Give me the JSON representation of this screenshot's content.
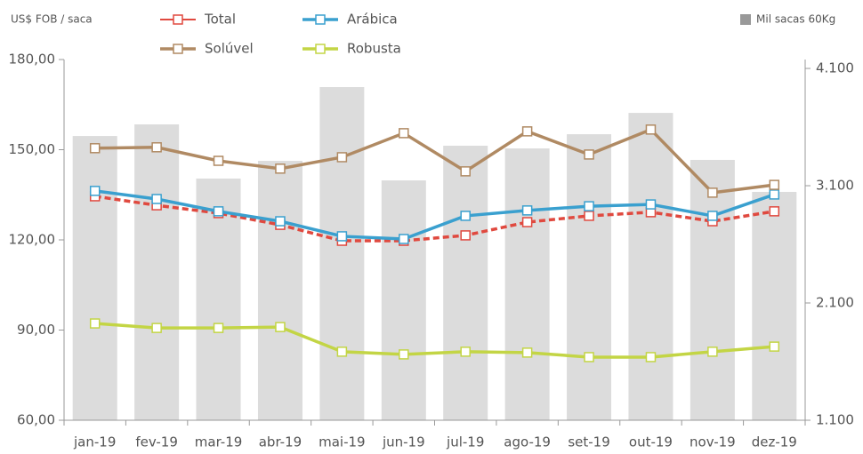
{
  "chart_data": {
    "type": "combo",
    "ylabel": "US$ FOB / saca",
    "categories": [
      "jan-19",
      "fev-19",
      "mar-19",
      "abr-19",
      "mai-19",
      "jun-19",
      "jul-19",
      "ago-19",
      "set-19",
      "out-19",
      "nov-19",
      "dez-19"
    ],
    "ylim": [
      60,
      180
    ],
    "yticks": [
      {
        "value": 60,
        "label": "60,00"
      },
      {
        "value": 90,
        "label": "90,00"
      },
      {
        "value": 120,
        "label": "120,00"
      },
      {
        "value": 150,
        "label": "150,00"
      },
      {
        "value": 180,
        "label": "180,00"
      }
    ],
    "y2lim": [
      1100,
      4176
    ],
    "y2ticks": [
      {
        "value": 1100,
        "label": "1.100"
      },
      {
        "value": 2100,
        "label": "2.100"
      },
      {
        "value": 3100,
        "label": "3.100"
      },
      {
        "value": 4100,
        "label": "4.100"
      }
    ],
    "series": [
      {
        "name": "Mil sacas 60Kg",
        "type": "bar",
        "axis": "y2",
        "color": "#dcdcdc",
        "values": [
          3524,
          3623,
          3161,
          3312,
          3941,
          3145,
          3441,
          3418,
          3539,
          3721,
          3320,
          3047
        ]
      },
      {
        "name": "Total",
        "type": "line",
        "color": "#e0493f",
        "dashed": true,
        "values": [
          134.5,
          131.5,
          128.9,
          125,
          119.7,
          119.7,
          121.5,
          125.9,
          128,
          129.2,
          126.2,
          129.5
        ]
      },
      {
        "name": "Arábica",
        "type": "line",
        "color": "#3aa0cf",
        "values": [
          136.3,
          133.6,
          129.5,
          126.2,
          121.2,
          120.3,
          128,
          129.8,
          131.2,
          131.8,
          128,
          135.1
        ]
      },
      {
        "name": "Solúvel",
        "type": "line",
        "color": "#b08a63",
        "values": [
          150.5,
          150.8,
          146.3,
          143.7,
          147.5,
          155.5,
          142.8,
          156.1,
          148.4,
          156.7,
          135.7,
          138.3
        ]
      },
      {
        "name": "Robusta",
        "type": "line",
        "color": "#c3d545",
        "values": [
          92.2,
          90.7,
          90.7,
          91,
          82.8,
          81.9,
          82.8,
          82.5,
          81,
          81,
          82.8,
          84.5
        ]
      }
    ]
  }
}
